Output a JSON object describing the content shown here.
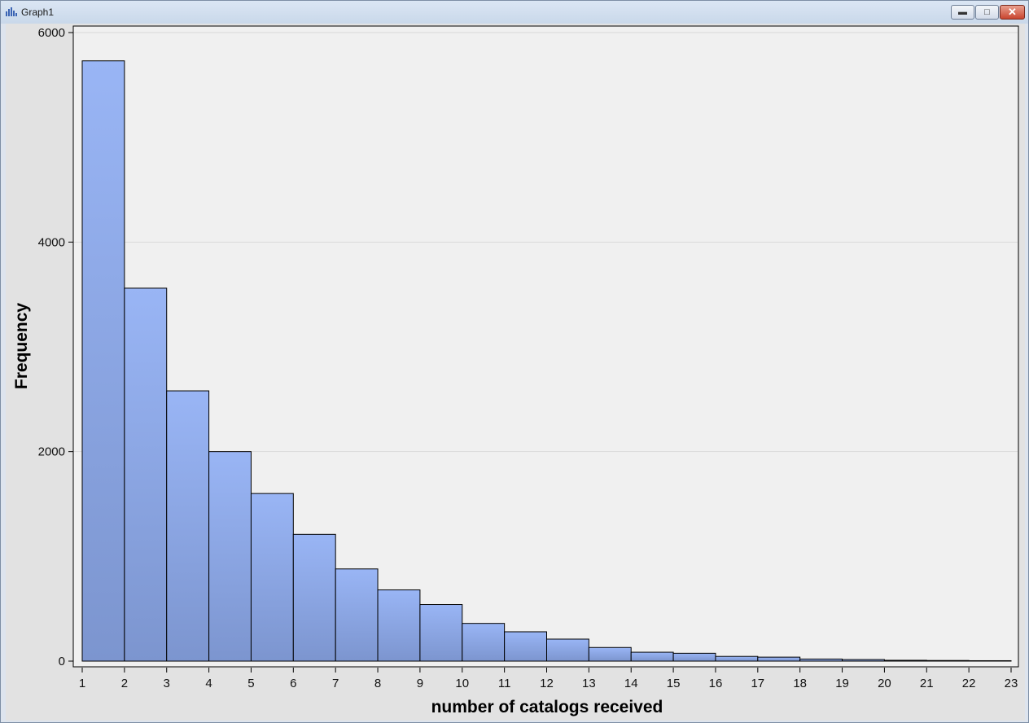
{
  "window": {
    "title": "Graph1",
    "controls": {
      "minimize": "minimize-icon",
      "maximize": "maximize-icon",
      "close": "close-icon"
    }
  },
  "chart_data": {
    "type": "bar",
    "x_ticks": [
      "1",
      "2",
      "3",
      "4",
      "5",
      "6",
      "7",
      "8",
      "9",
      "10",
      "11",
      "12",
      "13",
      "14",
      "15",
      "16",
      "17",
      "18",
      "19",
      "20",
      "21",
      "22",
      "23"
    ],
    "bins": [
      [
        1,
        2
      ],
      [
        2,
        3
      ],
      [
        3,
        4
      ],
      [
        4,
        5
      ],
      [
        5,
        6
      ],
      [
        6,
        7
      ],
      [
        7,
        8
      ],
      [
        8,
        9
      ],
      [
        9,
        10
      ],
      [
        10,
        11
      ],
      [
        11,
        12
      ],
      [
        12,
        13
      ],
      [
        13,
        14
      ],
      [
        14,
        15
      ],
      [
        15,
        16
      ],
      [
        16,
        17
      ],
      [
        17,
        18
      ],
      [
        18,
        19
      ],
      [
        19,
        20
      ],
      [
        20,
        21
      ],
      [
        21,
        22
      ],
      [
        22,
        23
      ]
    ],
    "values": [
      5730,
      3560,
      2580,
      2000,
      1600,
      1210,
      880,
      680,
      540,
      360,
      280,
      210,
      130,
      85,
      75,
      45,
      38,
      20,
      15,
      8,
      6,
      4
    ],
    "y_ticks": [
      "0",
      "2000",
      "4000",
      "6000"
    ],
    "xlabel": "number of catalogs received",
    "ylabel": "Frequency",
    "xlim": [
      1,
      23
    ],
    "ylim": [
      0,
      6000
    ],
    "grid": "horizontal",
    "colors": {
      "bar_top": "#99b5f5",
      "bar_bottom": "#7c95cf",
      "plot_bg": "#f0f0f0",
      "outline": "#000000"
    }
  }
}
